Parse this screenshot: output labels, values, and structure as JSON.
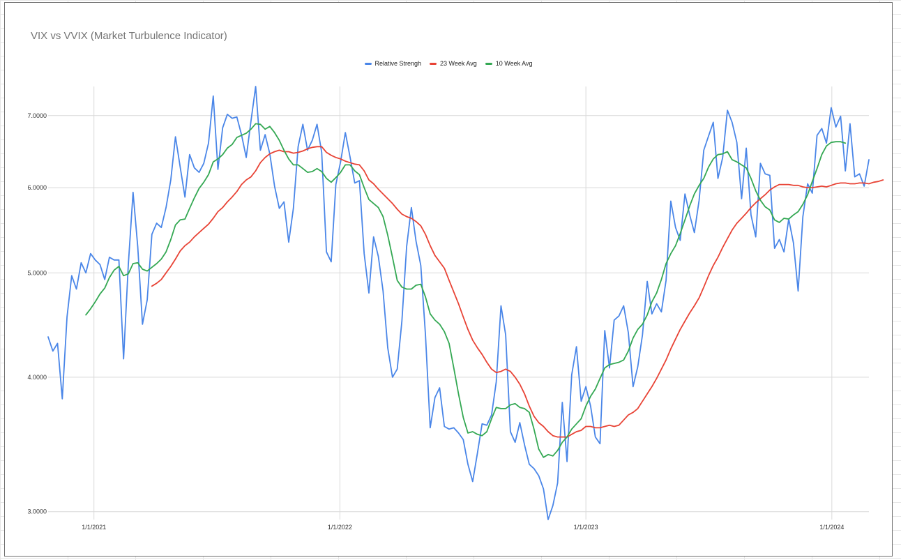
{
  "chart_data": {
    "type": "line",
    "title": "VIX vs VVIX (Market Turbulence Indicator)",
    "xlabel": "",
    "ylabel": "",
    "x_start": "2020-10-25",
    "x_step_days": 7,
    "x_ticks": [
      "1/1/2021",
      "1/1/2022",
      "1/1/2023",
      "1/1/2024"
    ],
    "y_ticks": [
      "3.0000",
      "4.0000",
      "5.0000",
      "6.0000",
      "7.0000"
    ],
    "y_scale": "log",
    "ylim": [
      2.95,
      7.45
    ],
    "grid": true,
    "legend_position": "top",
    "series": [
      {
        "name": "Relative Strengh",
        "color": "#4a86e8",
        "values": [
          4.36,
          4.23,
          4.3,
          3.82,
          4.55,
          4.97,
          4.83,
          5.11,
          5.0,
          5.21,
          5.14,
          5.09,
          4.93,
          5.17,
          5.14,
          5.14,
          4.16,
          5.09,
          5.94,
          5.29,
          4.48,
          4.72,
          5.43,
          5.56,
          5.51,
          5.75,
          6.1,
          6.69,
          6.27,
          5.88,
          6.44,
          6.26,
          6.2,
          6.32,
          6.6,
          7.3,
          6.24,
          6.82,
          7.02,
          6.96,
          6.98,
          6.72,
          6.4,
          6.92,
          7.45,
          6.5,
          6.72,
          6.45,
          6.02,
          5.74,
          5.82,
          5.34,
          5.74,
          6.55,
          6.87,
          6.5,
          6.64,
          6.87,
          6.47,
          5.23,
          5.12,
          6.04,
          6.34,
          6.75,
          6.41,
          6.06,
          6.09,
          5.21,
          4.79,
          5.4,
          5.18,
          4.81,
          4.26,
          4.0,
          4.07,
          4.51,
          5.29,
          5.75,
          5.35,
          5.08,
          4.38,
          3.59,
          3.83,
          3.91,
          3.6,
          3.58,
          3.59,
          3.55,
          3.5,
          3.32,
          3.2,
          3.4,
          3.62,
          3.61,
          3.69,
          3.96,
          4.66,
          4.38,
          3.56,
          3.48,
          3.63,
          3.46,
          3.32,
          3.29,
          3.24,
          3.15,
          2.95,
          3.04,
          3.19,
          3.79,
          3.34,
          4.02,
          4.27,
          3.8,
          3.92,
          3.76,
          3.52,
          3.47,
          4.42,
          4.08,
          4.52,
          4.56,
          4.66,
          4.4,
          3.92,
          4.09,
          4.38,
          4.91,
          4.58,
          4.68,
          4.6,
          4.92,
          5.83,
          5.51,
          5.36,
          5.92,
          5.66,
          5.45,
          5.84,
          6.5,
          6.7,
          6.9,
          6.12,
          6.4,
          7.08,
          6.9,
          6.61,
          5.86,
          6.53,
          5.66,
          5.4,
          6.32,
          6.18,
          6.16,
          5.27,
          5.37,
          5.23,
          5.61,
          5.33,
          4.81,
          5.64,
          6.05,
          5.93,
          6.71,
          6.81,
          6.6,
          7.12,
          6.83,
          6.99,
          6.22,
          6.88,
          6.14,
          6.18,
          6.02,
          6.37
        ]
      },
      {
        "name": "23 Week Avg",
        "color": "#e84335",
        "values": [
          null,
          null,
          null,
          null,
          null,
          null,
          null,
          null,
          null,
          null,
          null,
          null,
          null,
          null,
          null,
          null,
          null,
          null,
          null,
          null,
          null,
          null,
          4.86,
          4.89,
          4.93,
          5.0,
          5.07,
          5.15,
          5.24,
          5.3,
          5.34,
          5.4,
          5.45,
          5.5,
          5.55,
          5.62,
          5.7,
          5.75,
          5.82,
          5.88,
          5.95,
          6.04,
          6.1,
          6.14,
          6.22,
          6.33,
          6.4,
          6.45,
          6.48,
          6.5,
          6.48,
          6.48,
          6.46,
          6.47,
          6.49,
          6.52,
          6.54,
          6.55,
          6.55,
          6.47,
          6.43,
          6.4,
          6.38,
          6.35,
          6.33,
          6.31,
          6.3,
          6.22,
          6.1,
          6.05,
          5.98,
          5.92,
          5.86,
          5.8,
          5.73,
          5.67,
          5.64,
          5.62,
          5.58,
          5.53,
          5.43,
          5.3,
          5.19,
          5.12,
          5.05,
          4.92,
          4.8,
          4.68,
          4.55,
          4.43,
          4.33,
          4.26,
          4.2,
          4.13,
          4.07,
          4.04,
          4.05,
          4.07,
          4.05,
          4.0,
          3.94,
          3.86,
          3.76,
          3.68,
          3.63,
          3.6,
          3.56,
          3.53,
          3.52,
          3.52,
          3.52,
          3.54,
          3.56,
          3.57,
          3.6,
          3.6,
          3.59,
          3.59,
          3.6,
          3.61,
          3.6,
          3.61,
          3.65,
          3.69,
          3.71,
          3.74,
          3.8,
          3.86,
          3.92,
          3.99,
          4.07,
          4.15,
          4.25,
          4.34,
          4.43,
          4.51,
          4.59,
          4.66,
          4.74,
          4.85,
          4.97,
          5.08,
          5.17,
          5.28,
          5.38,
          5.48,
          5.56,
          5.62,
          5.68,
          5.75,
          5.81,
          5.86,
          5.91,
          5.97,
          6.01,
          6.04,
          6.04,
          6.04,
          6.03,
          6.03,
          6.01,
          6.0,
          6.0,
          6.01,
          6.02,
          6.01,
          6.03,
          6.05,
          6.06,
          6.06,
          6.05,
          6.05,
          6.06,
          6.06,
          6.05,
          6.07,
          6.08,
          6.1
        ]
      },
      {
        "name": "10 Week Avg",
        "color": "#34a853",
        "values": [
          null,
          null,
          null,
          null,
          null,
          null,
          null,
          null,
          4.57,
          4.63,
          4.7,
          4.78,
          4.84,
          4.95,
          5.03,
          5.07,
          4.97,
          4.99,
          5.1,
          5.11,
          5.04,
          5.02,
          5.06,
          5.1,
          5.15,
          5.23,
          5.37,
          5.54,
          5.6,
          5.61,
          5.74,
          5.87,
          5.99,
          6.07,
          6.17,
          6.34,
          6.38,
          6.44,
          6.53,
          6.58,
          6.68,
          6.71,
          6.74,
          6.8,
          6.88,
          6.87,
          6.8,
          6.84,
          6.75,
          6.64,
          6.5,
          6.38,
          6.3,
          6.3,
          6.25,
          6.2,
          6.21,
          6.25,
          6.21,
          6.12,
          6.07,
          6.13,
          6.2,
          6.3,
          6.3,
          6.22,
          6.17,
          6.0,
          5.85,
          5.8,
          5.75,
          5.64,
          5.42,
          5.17,
          4.92,
          4.85,
          4.83,
          4.83,
          4.87,
          4.88,
          4.75,
          4.58,
          4.52,
          4.48,
          4.41,
          4.3,
          4.08,
          3.86,
          3.67,
          3.55,
          3.56,
          3.54,
          3.53,
          3.56,
          3.66,
          3.75,
          3.74,
          3.74,
          3.77,
          3.78,
          3.75,
          3.74,
          3.71,
          3.58,
          3.43,
          3.37,
          3.39,
          3.38,
          3.42,
          3.48,
          3.52,
          3.58,
          3.62,
          3.66,
          3.76,
          3.84,
          3.9,
          3.99,
          4.08,
          4.11,
          4.12,
          4.13,
          4.15,
          4.23,
          4.35,
          4.43,
          4.48,
          4.57,
          4.7,
          4.79,
          4.93,
          5.1,
          5.21,
          5.3,
          5.44,
          5.6,
          5.77,
          5.92,
          6.03,
          6.12,
          6.27,
          6.38,
          6.44,
          6.45,
          6.48,
          6.37,
          6.34,
          6.3,
          6.26,
          6.12,
          5.96,
          5.84,
          5.76,
          5.72,
          5.6,
          5.57,
          5.62,
          5.61,
          5.66,
          5.7,
          5.79,
          5.91,
          6.08,
          6.25,
          6.44,
          6.56,
          6.61,
          6.62,
          6.62,
          6.6
        ]
      }
    ]
  }
}
